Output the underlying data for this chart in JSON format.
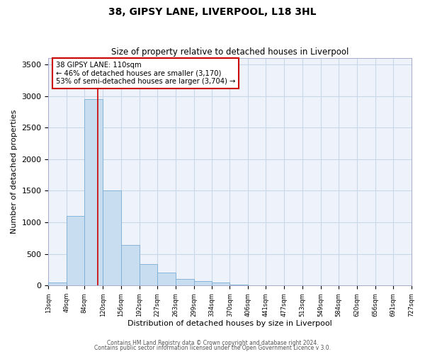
{
  "title": "38, GIPSY LANE, LIVERPOOL, L18 3HL",
  "subtitle": "Size of property relative to detached houses in Liverpool",
  "xlabel": "Distribution of detached houses by size in Liverpool",
  "ylabel": "Number of detached properties",
  "bar_color": "#c9ddf0",
  "bar_edge_color": "#7aadd4",
  "grid_color": "#c8d8e8",
  "background_color": "#eef3fb",
  "vline_x": 110,
  "vline_color": "#cc0000",
  "annotation_title": "38 GIPSY LANE: 110sqm",
  "annotation_line1": "← 46% of detached houses are smaller (3,170)",
  "annotation_line2": "53% of semi-detached houses are larger (3,704) →",
  "annotation_box_color": "#cc0000",
  "bin_edges": [
    13,
    49,
    84,
    120,
    156,
    192,
    227,
    263,
    299,
    334,
    370,
    406,
    441,
    477,
    513,
    549,
    584,
    620,
    656,
    691,
    727
  ],
  "bar_heights": [
    50,
    1100,
    2950,
    1510,
    645,
    340,
    205,
    100,
    75,
    50,
    20,
    0,
    0,
    0,
    0,
    0,
    0,
    0,
    0,
    0
  ],
  "ylim": [
    0,
    3600
  ],
  "yticks": [
    0,
    500,
    1000,
    1500,
    2000,
    2500,
    3000,
    3500
  ],
  "footer_line1": "Contains HM Land Registry data © Crown copyright and database right 2024.",
  "footer_line2": "Contains public sector information licensed under the Open Government Licence v 3.0."
}
